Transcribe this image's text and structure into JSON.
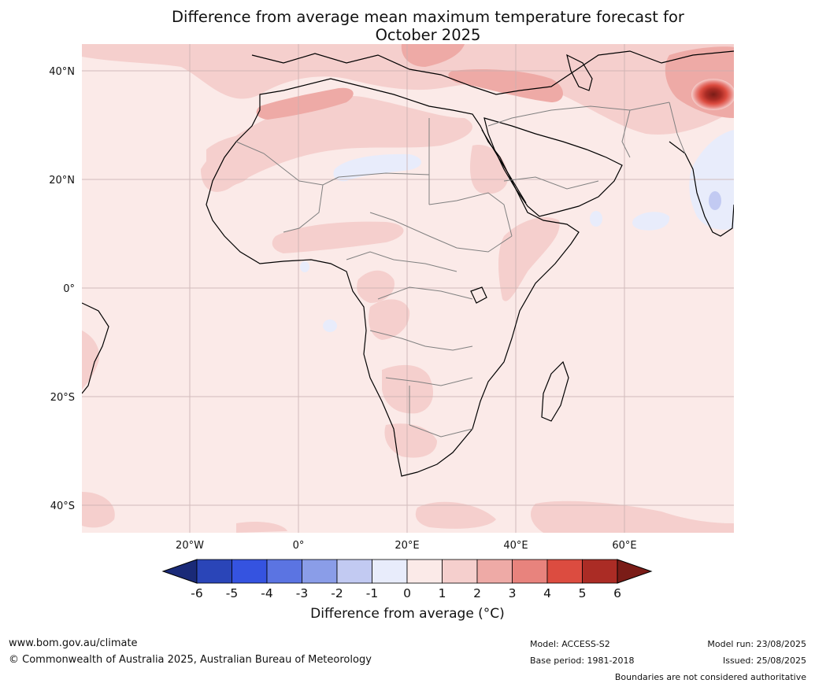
{
  "title_line1": "Difference from average mean maximum temperature forecast for",
  "title_line2": "October 2025",
  "lat_labels": [
    "40°N",
    "20°N",
    "0°",
    "20°S",
    "40°S"
  ],
  "lon_labels": [
    "20°W",
    "0°",
    "20°E",
    "40°E",
    "60°E"
  ],
  "colorbar": {
    "title": "Difference from average (°C)",
    "ticks": [
      "-6",
      "-5",
      "-4",
      "-3",
      "-2",
      "-1",
      "0",
      "1",
      "2",
      "3",
      "4",
      "5",
      "6"
    ],
    "colors": [
      "#1a2a78",
      "#2a45b8",
      "#3553e0",
      "#5b74e2",
      "#8a9de8",
      "#c2caf2",
      "#e8ecfb",
      "#fbeae8",
      "#f5cfcd",
      "#eeaaa6",
      "#e8837d",
      "#dc4c40",
      "#ab2c25",
      "#7a1c17"
    ]
  },
  "footer": {
    "url": "www.bom.gov.au/climate",
    "copyright": "© Commonwealth of Australia 2025, Australian Bureau of Meteorology",
    "model": "Model: ACCESS-S2",
    "base_period": "Base period: 1981-2018",
    "model_run": "Model run: 23/08/2025",
    "issued": "Issued: 25/08/2025",
    "disclaimer": "Boundaries are not considered authoritative"
  }
}
